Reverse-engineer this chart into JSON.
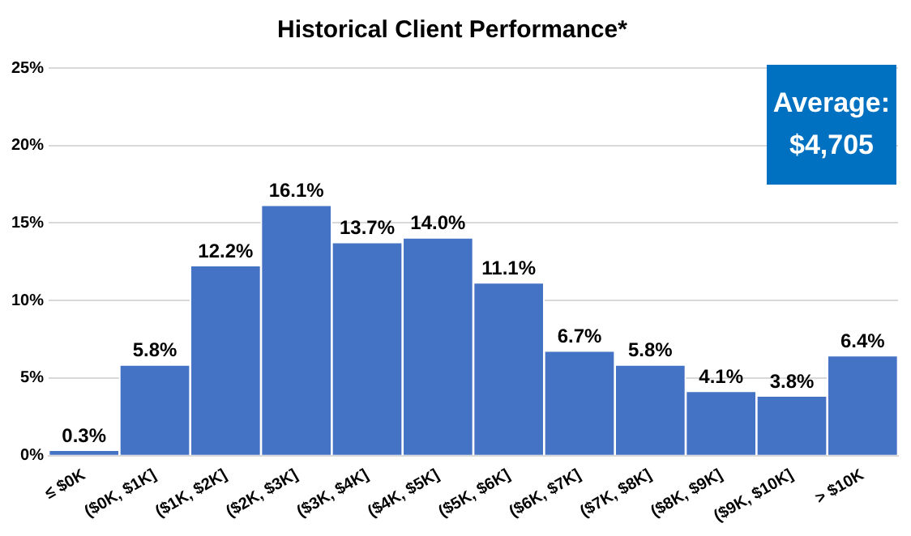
{
  "chart_data": {
    "type": "bar",
    "title": "Historical Client Performance*",
    "categories": [
      "≤ $0K",
      "($0K, $1K]",
      "($1K, $2K]",
      "($2K, $3K]",
      "($3K, $4K]",
      "($4K, $5K]",
      "($5K, $6K]",
      "($6K, $7K]",
      "($7K, $8K]",
      "($8K, $9K]",
      "($9K, $10K]",
      "> $10K"
    ],
    "values": [
      0.3,
      5.8,
      12.2,
      16.1,
      13.7,
      14.0,
      11.1,
      6.7,
      5.8,
      4.1,
      3.8,
      6.4
    ],
    "value_labels": [
      "0.3%",
      "5.8%",
      "12.2%",
      "16.1%",
      "13.7%",
      "14.0%",
      "11.1%",
      "6.7%",
      "5.8%",
      "4.1%",
      "3.8%",
      "6.4%"
    ],
    "color": "#4472c4",
    "ylim": [
      0,
      25
    ],
    "yticks": [
      {
        "value": 0,
        "label": "0%"
      },
      {
        "value": 5,
        "label": "5%"
      },
      {
        "value": 10,
        "label": "10%"
      },
      {
        "value": 15,
        "label": "15%"
      },
      {
        "value": 20,
        "label": "20%"
      },
      {
        "value": 25,
        "label": "25%"
      }
    ],
    "grid": "y",
    "legend": false,
    "annotations": [
      "Average: $4,705"
    ]
  }
}
